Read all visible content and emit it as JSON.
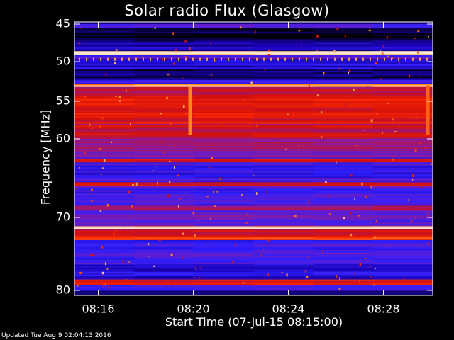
{
  "chart_data": {
    "type": "heatmap",
    "title": "Solar radio Flux (Glasgow)",
    "ylabel": "Frequency [MHz]",
    "xlabel": "Start Time (07-Jul-15 08:15:00)",
    "x_range": [
      "08:15:00",
      "08:30:00"
    ],
    "ylim": [
      45,
      80
    ],
    "y_scale": "linear",
    "y_ticks": [
      {
        "value": 45,
        "label": "45"
      },
      {
        "value": 50,
        "label": "50"
      },
      {
        "value": 55,
        "label": "55"
      },
      {
        "value": 60,
        "label": "60"
      },
      {
        "value": 70,
        "label": "70"
      },
      {
        "value": 80,
        "label": "80"
      }
    ],
    "x_ticks": [
      {
        "minutes": 1,
        "label": "08:16"
      },
      {
        "minutes": 5,
        "label": "08:20"
      },
      {
        "minutes": 9,
        "label": "08:24"
      },
      {
        "minutes": 13,
        "label": "08:28"
      }
    ],
    "colormap": [
      "#000000",
      "#1a00b0",
      "#3020ff",
      "#8a1aa0",
      "#d01010",
      "#ff2a00",
      "#ff8a20",
      "#ffe8d0"
    ],
    "bands": [
      {
        "f0": 45.0,
        "f1": 45.5,
        "level": 0.3
      },
      {
        "f0": 45.5,
        "f1": 47.5,
        "level": 0.05
      },
      {
        "f0": 47.5,
        "f1": 48.6,
        "level": 0.15
      },
      {
        "f0": 48.6,
        "f1": 49.1,
        "level": 1.0
      },
      {
        "f0": 49.1,
        "f1": 49.6,
        "level": 0.35
      },
      {
        "f0": 49.6,
        "f1": 51.0,
        "level": 0.2
      },
      {
        "f0": 51.0,
        "f1": 52.3,
        "level": 0.1
      },
      {
        "f0": 52.3,
        "f1": 52.8,
        "level": 0.3
      },
      {
        "f0": 52.8,
        "f1": 53.2,
        "level": 0.9
      },
      {
        "f0": 53.2,
        "f1": 54.0,
        "level": 0.55
      },
      {
        "f0": 54.0,
        "f1": 58.0,
        "level": 0.62
      },
      {
        "f0": 58.0,
        "f1": 60.0,
        "level": 0.55
      },
      {
        "f0": 60.0,
        "f1": 61.5,
        "level": 0.45
      },
      {
        "f0": 61.5,
        "f1": 62.5,
        "level": 0.35
      },
      {
        "f0": 62.5,
        "f1": 63.0,
        "level": 0.6
      },
      {
        "f0": 63.0,
        "f1": 65.5,
        "level": 0.3
      },
      {
        "f0": 65.5,
        "f1": 66.0,
        "level": 0.55
      },
      {
        "f0": 66.0,
        "f1": 68.5,
        "level": 0.3
      },
      {
        "f0": 68.5,
        "f1": 69.0,
        "level": 0.5
      },
      {
        "f0": 69.0,
        "f1": 71.2,
        "level": 0.35
      },
      {
        "f0": 71.2,
        "f1": 71.6,
        "level": 1.0
      },
      {
        "f0": 71.6,
        "f1": 72.6,
        "level": 0.55
      },
      {
        "f0": 72.6,
        "f1": 73.1,
        "level": 0.7
      },
      {
        "f0": 73.1,
        "f1": 76.5,
        "level": 0.3
      },
      {
        "f0": 76.5,
        "f1": 78.5,
        "level": 0.22
      },
      {
        "f0": 78.5,
        "f1": 79.3,
        "level": 0.62
      },
      {
        "f0": 79.3,
        "f1": 80.0,
        "level": 0.28
      }
    ],
    "events": [
      {
        "time_min": 4.85,
        "f0": 53.2,
        "f1": 59.5,
        "level": 0.85
      },
      {
        "time_min": 14.85,
        "f0": 53.0,
        "f1": 59.5,
        "level": 0.8
      }
    ]
  },
  "footer": {
    "updated": "Updated Tue Aug  9 02:04:13 2016"
  }
}
